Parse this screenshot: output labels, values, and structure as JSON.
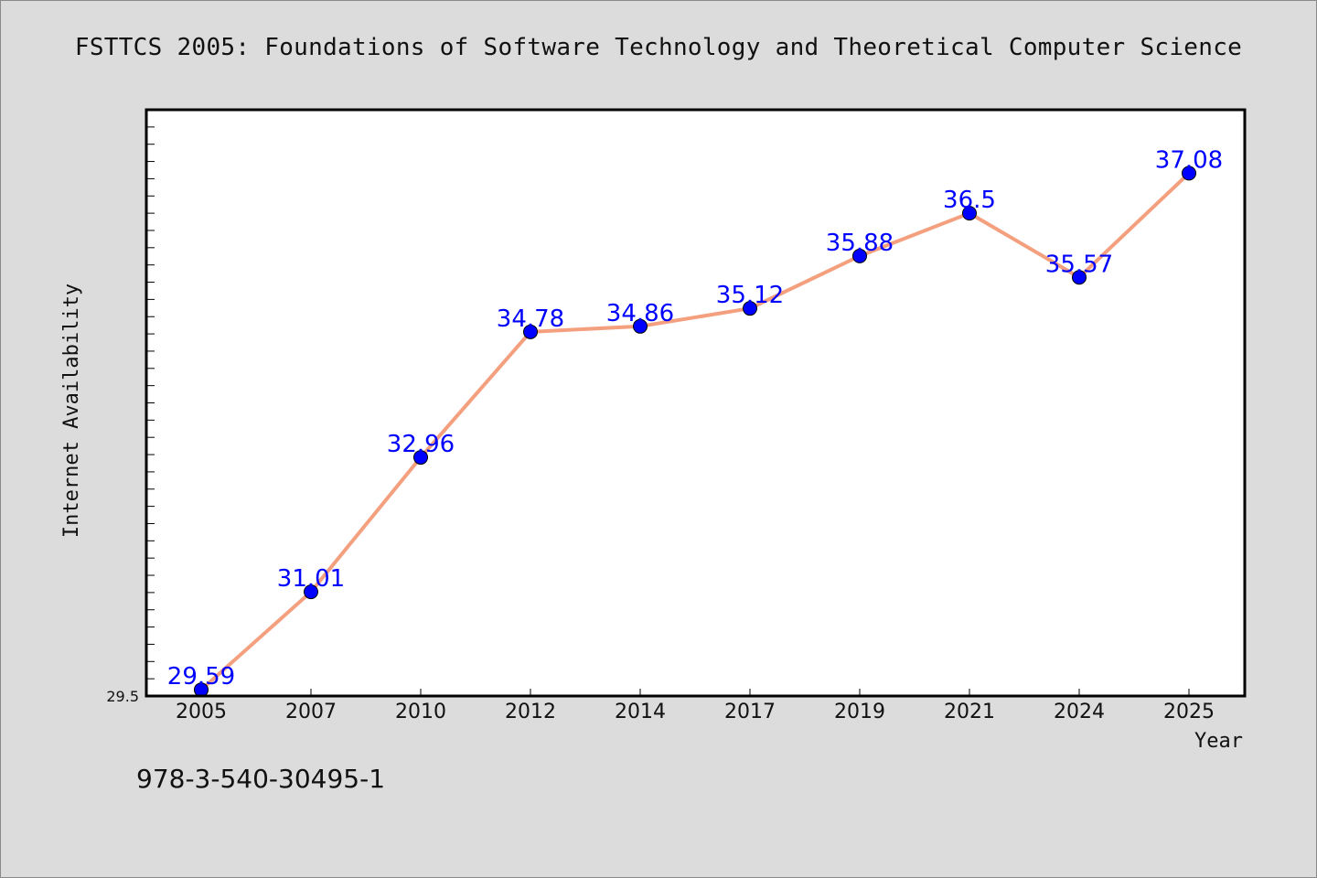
{
  "chart_data": {
    "type": "line",
    "title": "FSTTCS 2005: Foundations of Software Technology and Theoretical Computer Science",
    "xlabel": "Year",
    "ylabel": "Internet Availability",
    "categories": [
      "2005",
      "2007",
      "2010",
      "2012",
      "2014",
      "2017",
      "2019",
      "2021",
      "2024",
      "2025"
    ],
    "series": [
      {
        "values": [
          29.59,
          31.01,
          32.96,
          34.78,
          34.86,
          35.12,
          35.88,
          36.5,
          35.57,
          37.08
        ],
        "labels": [
          "29.59",
          "31.01",
          "32.96",
          "34.78",
          "34.86",
          "35.12",
          "35.88",
          "36.5",
          "35.57",
          "37.08"
        ],
        "line_color": "#f4a07f",
        "marker_color": "#0000ff"
      }
    ],
    "y_tick_labels": [
      "29.5"
    ],
    "ylim": [
      29.5,
      38.0
    ],
    "grid": false,
    "legend": "none",
    "label_color": "#0000ff"
  },
  "footer": {
    "text": "978-3-540-30495-1"
  }
}
